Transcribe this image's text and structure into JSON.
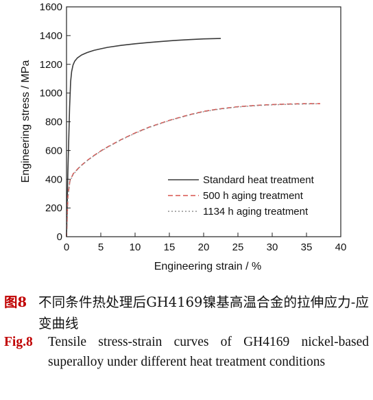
{
  "chart_data": {
    "type": "line",
    "xlabel": "Engineering strain / %",
    "ylabel": "Engineering stress / MPa",
    "xlim": [
      0,
      40
    ],
    "ylim": [
      0,
      1600
    ],
    "xticks": [
      0,
      5,
      10,
      15,
      20,
      25,
      30,
      35,
      40
    ],
    "yticks": [
      0,
      200,
      400,
      600,
      800,
      1000,
      1200,
      1400,
      1600
    ],
    "grid": false,
    "legend_position": "bottom-right",
    "series": [
      {
        "name": "Standard heat treatment",
        "color": "#3a3a3a",
        "style": "solid",
        "x": [
          0,
          0.2,
          0.45,
          0.6,
          0.75,
          0.95,
          1.2,
          1.6,
          2.2,
          3,
          4,
          5,
          6,
          8,
          10,
          12,
          14,
          16,
          18,
          20,
          22.5
        ],
        "y": [
          0,
          450,
          900,
          1080,
          1150,
          1195,
          1222,
          1245,
          1265,
          1282,
          1297,
          1308,
          1318,
          1332,
          1343,
          1352,
          1360,
          1367,
          1372,
          1377,
          1380
        ]
      },
      {
        "name": "500 h aging treatment",
        "color": "#d9534f",
        "style": "dashed",
        "x": [
          0,
          0.2,
          0.5,
          1,
          2,
          3,
          4,
          5,
          6,
          8,
          10,
          12,
          15,
          18,
          20,
          22,
          25,
          28,
          30,
          32,
          34,
          35,
          37
        ],
        "y": [
          0,
          280,
          390,
          440,
          490,
          530,
          565,
          597,
          625,
          677,
          722,
          762,
          810,
          850,
          872,
          888,
          905,
          915,
          920,
          923,
          925,
          926,
          926
        ]
      },
      {
        "name": "1134 h aging treatment",
        "color": "#8f8f8f",
        "style": "dotted",
        "x": [
          0,
          0.2,
          0.5,
          1,
          2,
          3,
          4,
          5,
          6,
          8,
          10,
          12,
          15,
          18,
          20,
          22,
          25,
          28,
          30,
          32,
          35,
          36.5
        ],
        "y": [
          0,
          270,
          385,
          435,
          488,
          528,
          563,
          595,
          623,
          675,
          720,
          760,
          808,
          848,
          870,
          886,
          903,
          913,
          918,
          921,
          924,
          925
        ]
      }
    ]
  },
  "caption": {
    "cn_label": "图8",
    "cn_text": "不同条件热处理后GH4169镍基高温合金的拉伸应力-应变曲线",
    "en_label": "Fig.8",
    "en_text": "Tensile stress-strain curves of GH4169 nickel-based superalloy under different heat treatment conditions"
  }
}
